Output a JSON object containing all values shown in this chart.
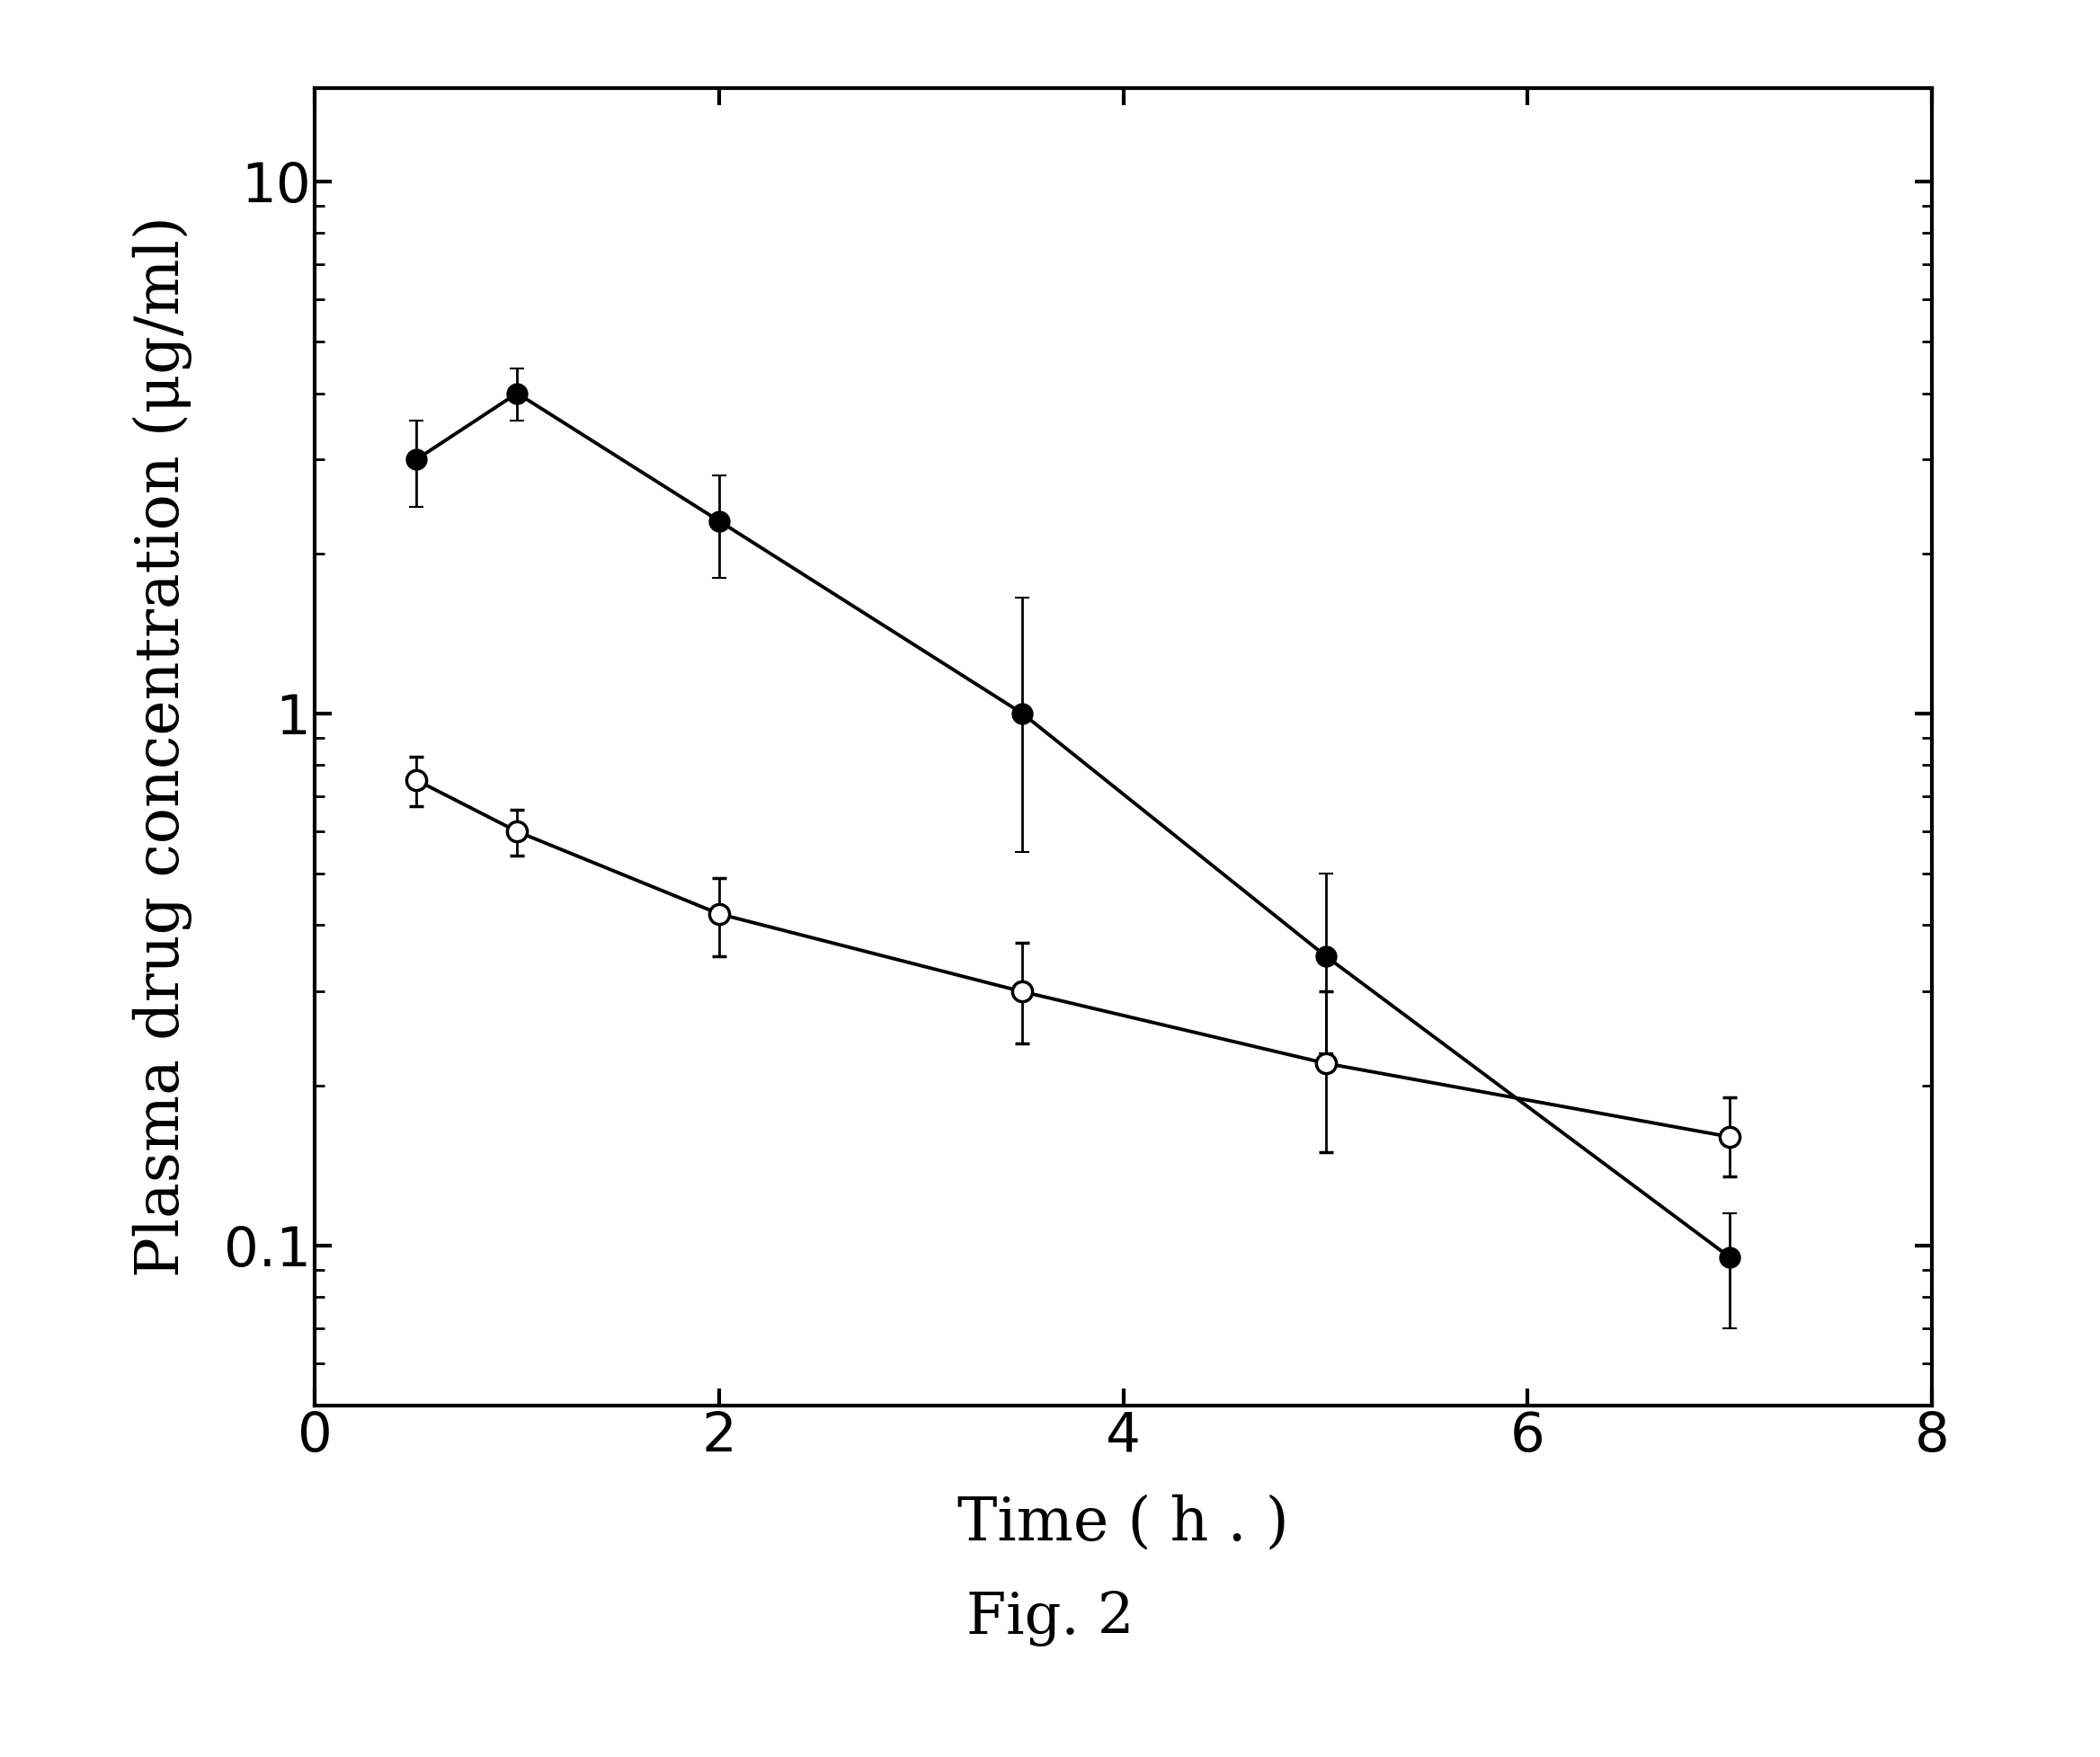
{
  "filled_x": [
    0.5,
    1.0,
    2.0,
    3.5,
    5.0,
    7.0
  ],
  "filled_y": [
    3.0,
    4.0,
    2.3,
    1.0,
    0.35,
    0.095
  ],
  "filled_yerr_upper": [
    0.55,
    0.45,
    0.5,
    0.65,
    0.15,
    0.02
  ],
  "filled_yerr_lower": [
    0.55,
    0.45,
    0.5,
    0.45,
    0.12,
    0.025
  ],
  "open_x": [
    0.5,
    1.0,
    2.0,
    3.5,
    5.0,
    7.0
  ],
  "open_y": [
    0.75,
    0.6,
    0.42,
    0.3,
    0.22,
    0.16
  ],
  "open_yerr_upper": [
    0.08,
    0.06,
    0.07,
    0.07,
    0.08,
    0.03
  ],
  "open_yerr_lower": [
    0.08,
    0.06,
    0.07,
    0.06,
    0.07,
    0.025
  ],
  "xlabel": "Time ( h . )",
  "ylabel": "Plasma drug concentration (μg/ml)",
  "caption": "Fig. 2",
  "xlim": [
    0,
    8
  ],
  "ylim": [
    0.05,
    15
  ],
  "xticks": [
    0,
    2,
    4,
    6,
    8
  ],
  "yticks": [
    0.1,
    1.0,
    10
  ],
  "background_color": "#ffffff",
  "line_color": "#000000",
  "marker_size": 16,
  "linewidth": 2.8,
  "capsize": 6,
  "elinewidth": 2.0
}
